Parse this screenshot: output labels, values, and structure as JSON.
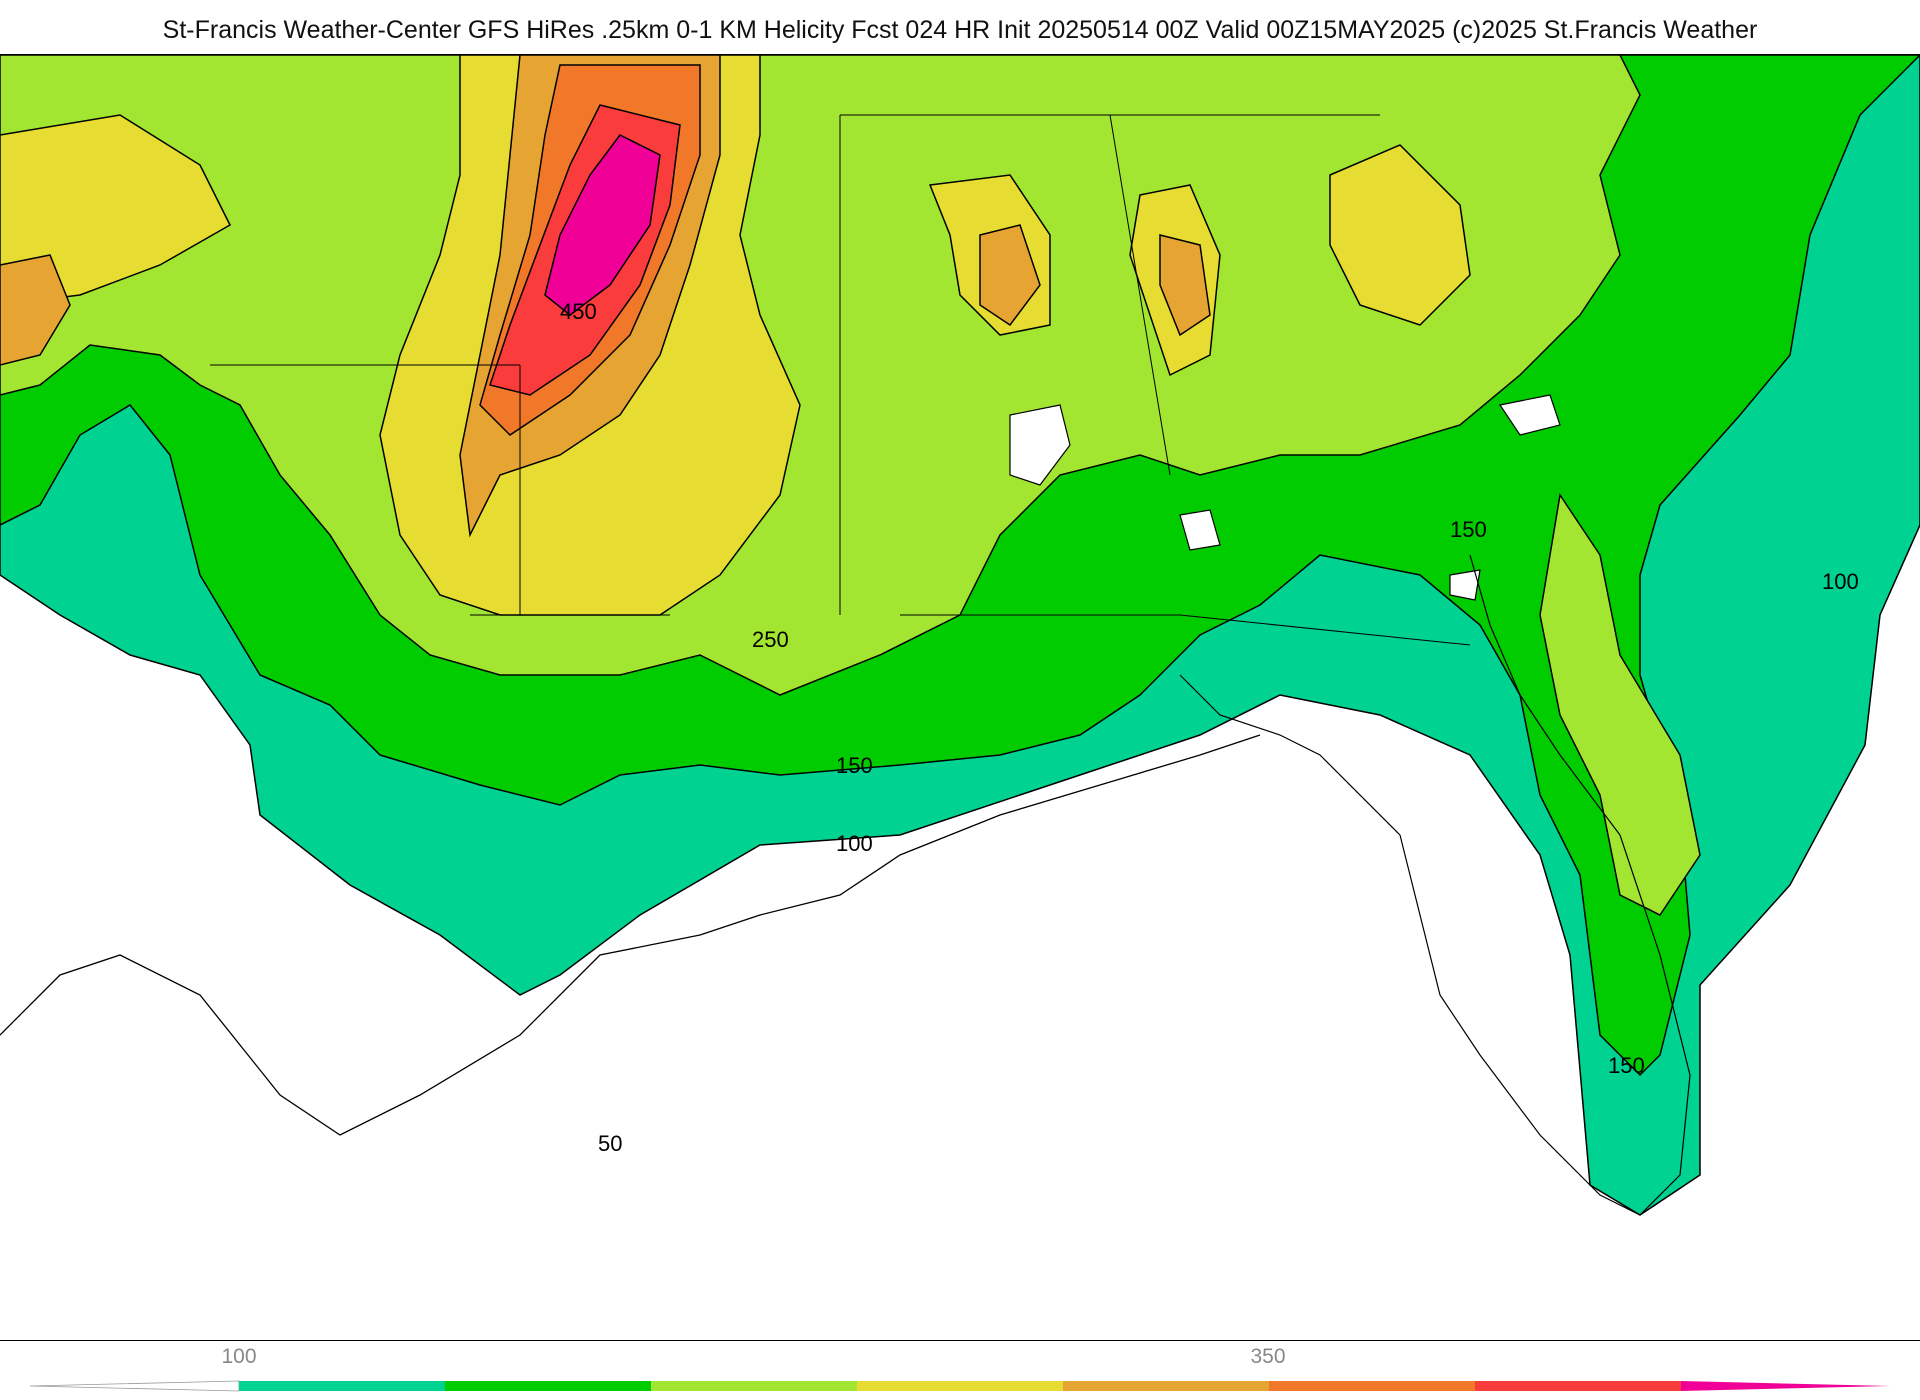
{
  "title": "St-Francis Weather-Center GFS HiRes .25km 0-1 KM Helicity Fcst 024 HR Init 20250514 00Z  Valid 00Z15MAY2025    (c)2025 St.Francis Weather",
  "contour_labels": [
    "450",
    "250",
    "150",
    "150",
    "100",
    "100",
    "150",
    "50"
  ],
  "legend": {
    "tick_labels": [
      "100",
      "350"
    ],
    "colors": [
      "#00d291",
      "#00cc00",
      "#a2e632",
      "#e6dc32",
      "#e6a532",
      "#f07828",
      "#fa3c3c",
      "#f00096"
    ],
    "stop_values": [
      100,
      150,
      200,
      250,
      300,
      350,
      400,
      450
    ]
  },
  "fill_colors": {
    "band_100": "#00d291",
    "band_150": "#00cc00",
    "band_200": "#a2e632",
    "band_250": "#e6dc32",
    "band_300": "#e6a532",
    "band_350": "#f07828",
    "band_400": "#fa3c3c",
    "band_450": "#f00096"
  }
}
